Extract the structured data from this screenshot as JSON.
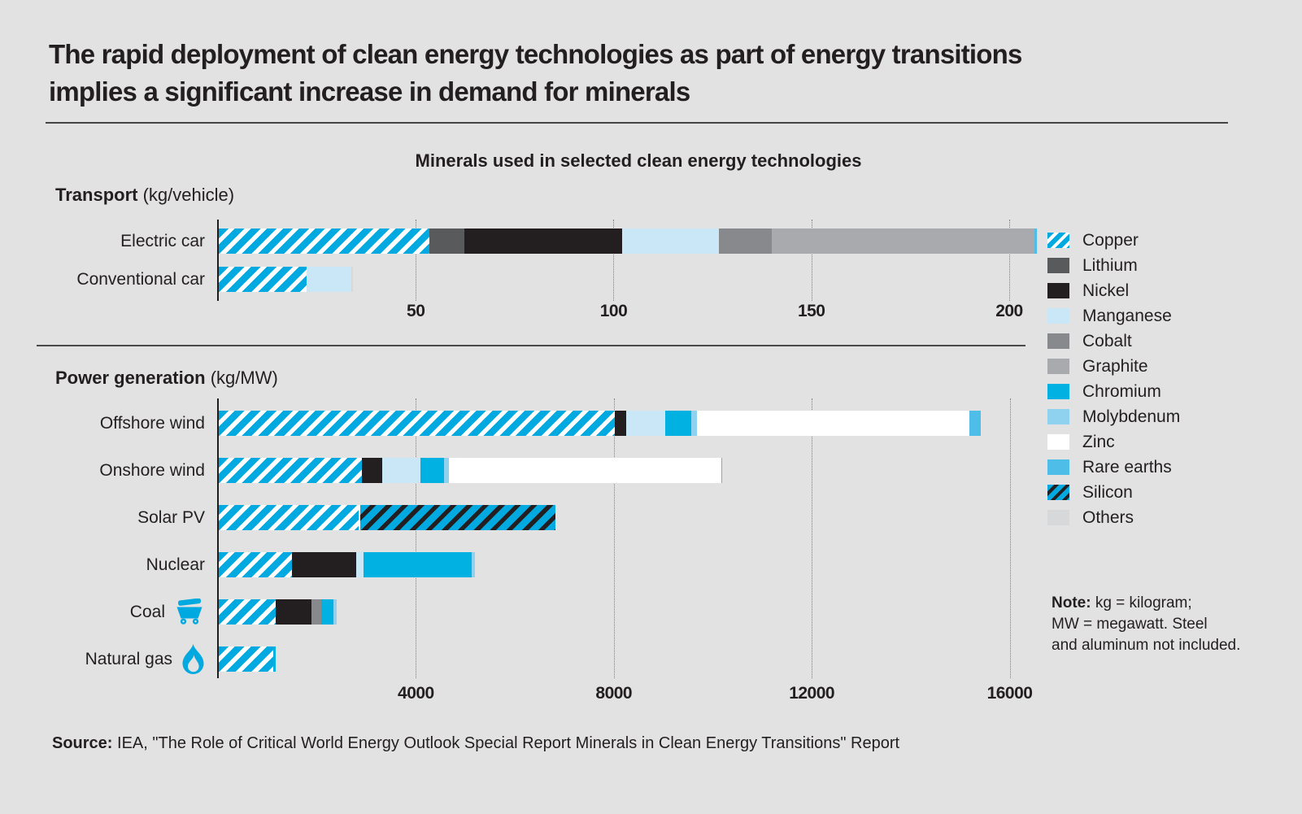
{
  "colors": {
    "background": "#e2e2e2",
    "text": "#231f20",
    "rule": "#454547",
    "gridline": "#7d7f82",
    "icon_cyan": "#00a9e0"
  },
  "header": {
    "line1": "The rapid deployment of clean energy technologies as part of energy transitions",
    "line2": "implies a significant increase in demand for minerals"
  },
  "chart_title": "Minerals used in selected clean energy technologies",
  "transport_section": {
    "label": "Transport",
    "unit": " (kg/vehicle)"
  },
  "power_section": {
    "label": "Power generation",
    "unit": " (kg/MW)"
  },
  "legend": {
    "items": [
      {
        "label": "Copper",
        "color": "#00a9e0",
        "hatch": "#ffffff"
      },
      {
        "label": "Lithium",
        "color": "#595a5c",
        "hatch": null
      },
      {
        "label": "Nickel",
        "color": "#231f20",
        "hatch": null
      },
      {
        "label": "Manganese",
        "color": "#c9e7f7",
        "hatch": null
      },
      {
        "label": "Cobalt",
        "color": "#88898c",
        "hatch": null
      },
      {
        "label": "Graphite",
        "color": "#a9aaad",
        "hatch": null
      },
      {
        "label": "Chromium",
        "color": "#00b1e1",
        "hatch": null
      },
      {
        "label": "Molybdenum",
        "color": "#8fd2ef",
        "hatch": null
      },
      {
        "label": "Zinc",
        "color": "#ffffff",
        "hatch": null
      },
      {
        "label": "Rare earths",
        "color": "#4ebee9",
        "hatch": null
      },
      {
        "label": "Silicon",
        "color": "#00a9e0",
        "hatch": "#231f20"
      },
      {
        "label": "Others",
        "color": "#d7d8d9",
        "hatch": null
      }
    ]
  },
  "note": {
    "label": "Note:",
    "line1": " kg = kilogram;",
    "line2": "MW = megawatt. Steel",
    "line3": "and aluminum not included."
  },
  "source": {
    "label": "Source:",
    "text": " IEA, \"The Role of Critical World Energy Outlook Special Report Minerals in Clean Energy Transitions\" Report"
  },
  "chart_data": [
    {
      "type": "bar",
      "stacked": true,
      "orientation": "horizontal",
      "title": "Transport (kg/vehicle)",
      "unit": "kg/vehicle",
      "categories": [
        "Electric car",
        "Conventional car"
      ],
      "series": [
        {
          "name": "Copper",
          "values": [
            53.2,
            22.3
          ]
        },
        {
          "name": "Lithium",
          "values": [
            8.9,
            0
          ]
        },
        {
          "name": "Nickel",
          "values": [
            39.9,
            0
          ]
        },
        {
          "name": "Manganese",
          "values": [
            24.5,
            11.2
          ]
        },
        {
          "name": "Cobalt",
          "values": [
            13.3,
            0
          ]
        },
        {
          "name": "Graphite",
          "values": [
            66.3,
            0
          ]
        },
        {
          "name": "Zinc",
          "values": [
            0.1,
            0.1
          ]
        },
        {
          "name": "Rare earths",
          "values": [
            0.5,
            0
          ]
        },
        {
          "name": "Others",
          "values": [
            0.3,
            0.3
          ]
        }
      ],
      "xticks": [
        50,
        100,
        150,
        200
      ],
      "xlim": [
        0,
        222
      ],
      "grid": true,
      "legend_position": "right"
    },
    {
      "type": "bar",
      "stacked": true,
      "orientation": "horizontal",
      "title": "Power generation (kg/MW)",
      "unit": "kg/MW",
      "categories": [
        "Offshore wind",
        "Onshore wind",
        "Solar PV",
        "Nuclear",
        "Coal",
        "Natural gas"
      ],
      "series": [
        {
          "name": "Copper",
          "values": [
            8000,
            2900,
            2822,
            1473,
            1150,
            1100
          ]
        },
        {
          "name": "Nickel",
          "values": [
            240,
            404,
            0,
            1297,
            721,
            0
          ]
        },
        {
          "name": "Manganese",
          "values": [
            790,
            780,
            0,
            148,
            0,
            0
          ]
        },
        {
          "name": "Cobalt",
          "values": [
            0,
            0,
            0,
            0,
            200,
            0
          ]
        },
        {
          "name": "Chromium",
          "values": [
            525,
            470,
            0,
            2190,
            254,
            48
          ]
        },
        {
          "name": "Molybdenum",
          "values": [
            109,
            99,
            0,
            70,
            66,
            0
          ]
        },
        {
          "name": "Zinc",
          "values": [
            5500,
            5500,
            0,
            0,
            0,
            0
          ]
        },
        {
          "name": "Rare earths",
          "values": [
            239,
            14,
            0,
            0,
            0,
            0
          ]
        },
        {
          "name": "Silicon",
          "values": [
            0,
            0,
            3948,
            0,
            0,
            0
          ]
        }
      ],
      "xticks": [
        4000,
        8000,
        12000,
        16000
      ],
      "xlim": [
        0,
        17750
      ],
      "grid": true,
      "category_icons": {
        "Coal": "minecart-icon",
        "Natural gas": "flame-icon"
      }
    }
  ]
}
